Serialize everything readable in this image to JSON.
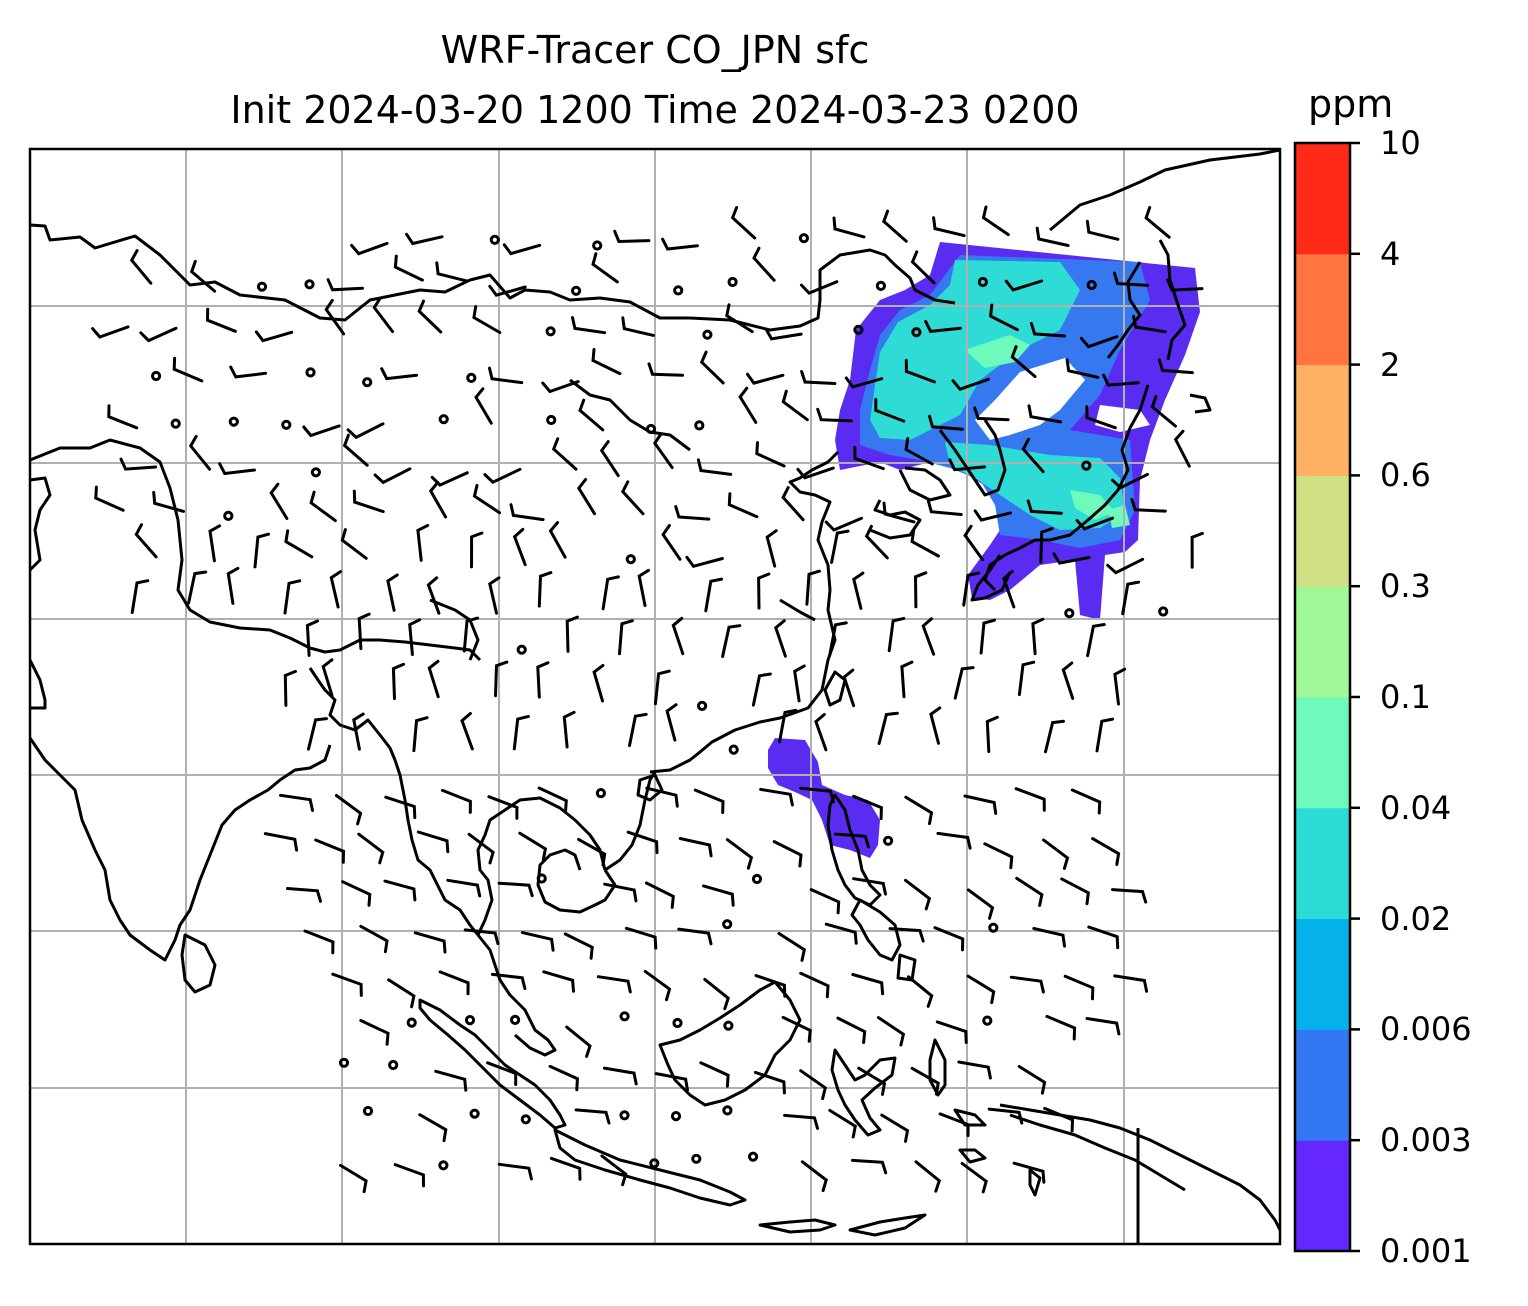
{
  "title": {
    "line1": "WRF-Tracer CO_JPN sfc",
    "line2": "Init 2024-03-20 1200 Time 2024-03-23 0200"
  },
  "colorbar": {
    "unit": "ppm",
    "ticks": [
      "0.001",
      "0.003",
      "0.006",
      "0.02",
      "0.04",
      "0.1",
      "0.3",
      "0.6",
      "2",
      "4",
      "10"
    ],
    "colors": [
      "#6427ff",
      "#3477f2",
      "#04b1ea",
      "#2ddbd6",
      "#6ef9bd",
      "#9ff895",
      "#d1e085",
      "#feb162",
      "#ff7440",
      "#ff2a17"
    ]
  },
  "map": {
    "projection": "mercator",
    "gridlines": true,
    "grid_color": "#b0b0b0",
    "coastline_color": "#000000",
    "wind_barbs": true
  }
}
